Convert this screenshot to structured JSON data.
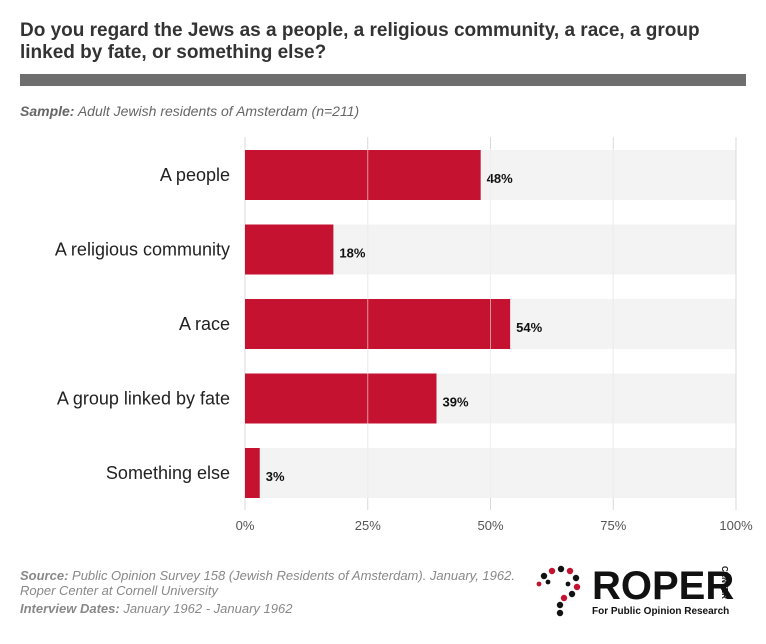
{
  "header": {
    "title": "Do you regard the Jews as a people, a religious community, a race, a group linked by fate, or something else?",
    "sample_label": "Sample:",
    "sample_text": "Adult Jewish residents of Amsterdam (n=211)"
  },
  "footer": {
    "source_label": "Source:",
    "source_text": "Public Opinion Survey 158 (Jewish Residents of Amsterdam). January, 1962. Roper Center at Cornell University",
    "dates_label": "Interview Dates:",
    "dates_text": "January 1962 - January 1962"
  },
  "logo": {
    "word": "ROPER",
    "side": "CENTER",
    "tagline": "For Public Opinion Research"
  },
  "colors": {
    "bar": "#c41230",
    "band": "#f3f3f3",
    "grid": "#d9d9d9",
    "title_rule": "#6e6e6e"
  },
  "chart_data": {
    "type": "bar",
    "orientation": "horizontal",
    "categories": [
      "A people",
      "A religious community",
      "A race",
      "A group linked by fate",
      "Something else"
    ],
    "values": [
      48,
      18,
      54,
      39,
      3
    ],
    "value_labels": [
      "48%",
      "18%",
      "54%",
      "39%",
      "3%"
    ],
    "xlim": [
      0,
      100
    ],
    "ticks": [
      0,
      25,
      50,
      75,
      100
    ],
    "tick_labels": [
      "0%",
      "25%",
      "50%",
      "75%",
      "100%"
    ],
    "grid": true
  }
}
